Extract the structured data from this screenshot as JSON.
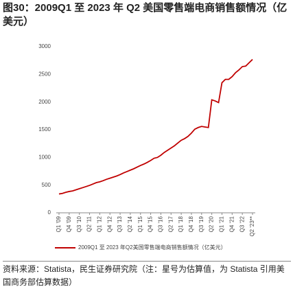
{
  "chart_data": {
    "type": "line",
    "title": "图30：2009Q1 至 2023 年 Q2 美国零售端电商销售额情况（亿美元）",
    "source": "资料来源：Statista，民生证券研究院（注：星号为估算值，为 Statista 引用美国商务部估算数据）",
    "categories": [
      "Q1 '09",
      null,
      null,
      "Q4 '09",
      null,
      null,
      "Q3 '10",
      null,
      null,
      "Q2 '11",
      null,
      null,
      "Q1 '12",
      null,
      null,
      "Q4 '12",
      null,
      null,
      "Q3 '13",
      null,
      null,
      "Q2 '14",
      null,
      null,
      "Q1 '15",
      null,
      null,
      "Q4 '15",
      null,
      null,
      "Q3 '16",
      null,
      null,
      "Q2 '17",
      null,
      null,
      "Q1 '18",
      null,
      null,
      "Q4 '18",
      null,
      null,
      "Q3 '19",
      null,
      null,
      "Q2 '20",
      null,
      null,
      "Q1 '21",
      null,
      null,
      "Q4 '21",
      null,
      null,
      "Q3 '22",
      null,
      null,
      "Q2 '23**"
    ],
    "series": [
      {
        "name": "2009Q1 至 2023 年Q2美国零售端电商销售额情况（亿美元）",
        "color": "#c00000",
        "values": [
          340,
          350,
          370,
          385,
          395,
          415,
          435,
          455,
          475,
          495,
          520,
          545,
          560,
          580,
          605,
          625,
          645,
          665,
          690,
          720,
          745,
          770,
          795,
          825,
          855,
          880,
          910,
          945,
          985,
          1000,
          1040,
          1090,
          1130,
          1170,
          1210,
          1260,
          1310,
          1340,
          1380,
          1440,
          1510,
          1540,
          1560,
          1550,
          1540,
          2040,
          2020,
          1990,
          2350,
          2410,
          2410,
          2460,
          2530,
          2580,
          2640,
          2650,
          2710,
          2770
        ]
      }
    ],
    "ylim": [
      0,
      3000
    ],
    "yticks": [
      0,
      500,
      1000,
      1500,
      2000,
      2500,
      3000
    ],
    "grid": false,
    "legend": "bottom"
  }
}
